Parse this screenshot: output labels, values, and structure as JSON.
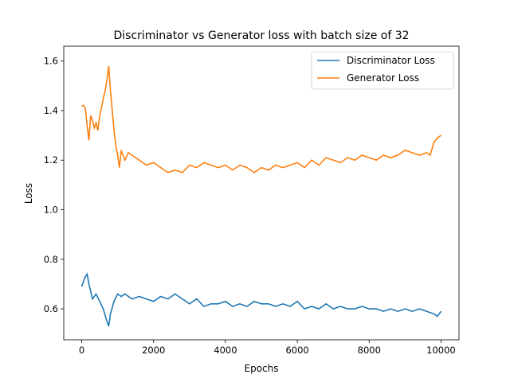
{
  "chart_data": {
    "type": "line",
    "title": "Discriminator vs Generator loss with batch size of 32",
    "xlabel": "Epochs",
    "ylabel": "Loss",
    "xlim": [
      -500,
      10500
    ],
    "ylim": [
      0.475,
      1.66
    ],
    "xticks": [
      0,
      2000,
      4000,
      6000,
      8000,
      10000
    ],
    "yticks": [
      0.6,
      0.8,
      1.0,
      1.2,
      1.4,
      1.6
    ],
    "xtick_labels": [
      "0",
      "2000",
      "4000",
      "6000",
      "8000",
      "10000"
    ],
    "ytick_labels": [
      "0.6",
      "0.8",
      "1.0",
      "1.2",
      "1.4",
      "1.6"
    ],
    "grid": false,
    "legend": "top-right",
    "series": [
      {
        "name": "Discriminator Loss",
        "color": "#1f77b4",
        "x": [
          0,
          100,
          150,
          200,
          300,
          400,
          500,
          600,
          700,
          750,
          800,
          900,
          1000,
          1100,
          1200,
          1400,
          1600,
          1800,
          2000,
          2200,
          2400,
          2600,
          2800,
          3000,
          3200,
          3400,
          3600,
          3800,
          4000,
          4200,
          4400,
          4600,
          4800,
          5000,
          5200,
          5400,
          5600,
          5800,
          6000,
          6200,
          6400,
          6600,
          6800,
          7000,
          7200,
          7400,
          7600,
          7800,
          8000,
          8200,
          8400,
          8600,
          8800,
          9000,
          9200,
          9400,
          9600,
          9800,
          9900,
          10000
        ],
        "y": [
          0.69,
          0.73,
          0.74,
          0.7,
          0.64,
          0.66,
          0.63,
          0.6,
          0.55,
          0.53,
          0.58,
          0.63,
          0.66,
          0.65,
          0.66,
          0.64,
          0.65,
          0.64,
          0.63,
          0.65,
          0.64,
          0.66,
          0.64,
          0.62,
          0.64,
          0.61,
          0.62,
          0.62,
          0.63,
          0.61,
          0.62,
          0.61,
          0.63,
          0.62,
          0.62,
          0.61,
          0.62,
          0.61,
          0.63,
          0.6,
          0.61,
          0.6,
          0.62,
          0.6,
          0.61,
          0.6,
          0.6,
          0.61,
          0.6,
          0.6,
          0.59,
          0.6,
          0.59,
          0.6,
          0.59,
          0.6,
          0.59,
          0.58,
          0.57,
          0.59
        ]
      },
      {
        "name": "Generator Loss",
        "color": "#ff7f0e",
        "x": [
          0,
          50,
          100,
          150,
          200,
          250,
          300,
          350,
          400,
          450,
          500,
          550,
          600,
          650,
          700,
          750,
          800,
          850,
          900,
          950,
          1000,
          1050,
          1100,
          1150,
          1200,
          1300,
          1400,
          1500,
          1600,
          1800,
          2000,
          2200,
          2400,
          2600,
          2800,
          3000,
          3200,
          3400,
          3600,
          3800,
          4000,
          4200,
          4400,
          4600,
          4800,
          5000,
          5200,
          5400,
          5600,
          5800,
          6000,
          6200,
          6400,
          6600,
          6800,
          7000,
          7200,
          7400,
          7600,
          7800,
          8000,
          8200,
          8400,
          8600,
          8800,
          9000,
          9200,
          9400,
          9600,
          9700,
          9800,
          9900,
          10000
        ],
        "y": [
          1.42,
          1.42,
          1.41,
          1.34,
          1.28,
          1.38,
          1.36,
          1.33,
          1.35,
          1.32,
          1.38,
          1.41,
          1.45,
          1.48,
          1.52,
          1.58,
          1.48,
          1.4,
          1.32,
          1.26,
          1.22,
          1.17,
          1.24,
          1.22,
          1.2,
          1.23,
          1.22,
          1.21,
          1.2,
          1.18,
          1.19,
          1.17,
          1.15,
          1.16,
          1.15,
          1.18,
          1.17,
          1.19,
          1.18,
          1.17,
          1.18,
          1.16,
          1.18,
          1.17,
          1.15,
          1.17,
          1.16,
          1.18,
          1.17,
          1.18,
          1.19,
          1.17,
          1.2,
          1.18,
          1.21,
          1.2,
          1.19,
          1.21,
          1.2,
          1.22,
          1.21,
          1.2,
          1.22,
          1.21,
          1.22,
          1.24,
          1.23,
          1.22,
          1.23,
          1.22,
          1.27,
          1.29,
          1.3
        ]
      }
    ]
  }
}
